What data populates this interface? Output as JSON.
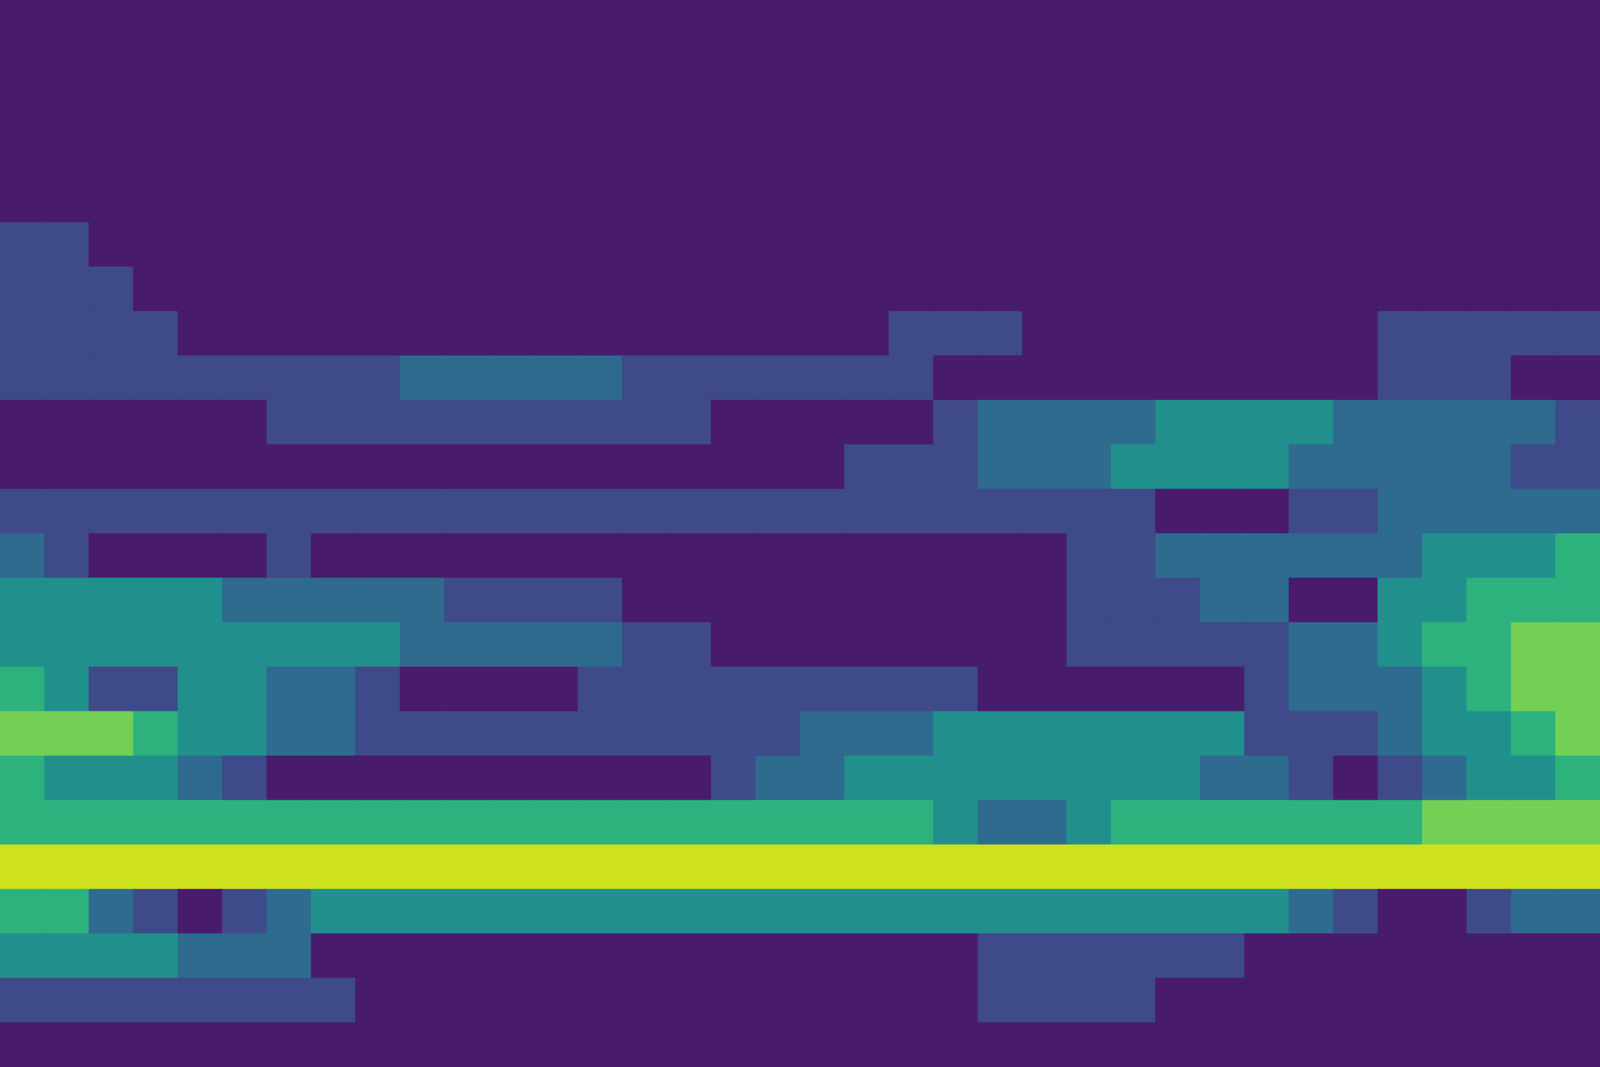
{
  "chart_data": {
    "type": "contour",
    "tick_labels": false,
    "levels": [
      0,
      1,
      2,
      3,
      4,
      5,
      6
    ],
    "colors": [
      "#481b6d",
      "#3e4a89",
      "#2e6b8e",
      "#21908d",
      "#2db27d",
      "#74d055",
      "#cde11d"
    ],
    "z": [
      [
        0,
        0,
        0,
        0,
        0,
        0,
        0,
        0,
        0,
        0,
        0,
        0,
        0,
        0,
        0,
        0,
        0,
        0,
        0,
        0,
        0,
        0,
        0,
        0,
        0,
        0,
        0,
        0,
        0,
        0,
        0,
        0,
        0,
        0,
        0,
        0
      ],
      [
        0,
        0,
        0,
        0,
        0,
        0,
        0,
        0,
        0,
        0,
        0,
        0,
        0,
        0,
        0,
        0,
        0,
        0,
        0,
        0,
        0,
        0,
        0,
        0,
        0,
        0,
        0,
        0,
        0,
        0,
        0,
        0,
        0,
        0,
        0,
        0
      ],
      [
        0,
        0,
        0,
        0,
        0,
        0,
        0,
        0,
        0,
        0,
        0,
        0,
        0,
        0,
        0,
        0,
        0,
        0,
        0,
        0,
        0,
        0,
        0,
        0,
        0,
        0,
        0,
        0,
        0,
        0,
        0,
        0,
        0,
        0,
        0,
        0
      ],
      [
        0,
        0,
        0,
        0,
        0,
        0,
        0,
        0,
        0,
        0,
        0,
        0,
        0,
        0,
        0,
        0,
        0,
        0,
        0,
        0,
        0,
        0,
        0,
        0,
        0,
        0,
        0,
        0,
        0,
        0,
        0,
        0,
        0,
        0,
        0,
        0
      ],
      [
        0,
        0,
        0,
        0,
        0,
        0,
        0,
        0,
        0,
        0,
        0,
        0,
        0,
        0,
        0,
        0,
        0,
        0,
        0,
        0,
        0,
        0,
        0,
        0,
        0,
        0,
        0,
        0,
        0,
        0,
        0,
        0,
        0,
        0,
        0,
        0
      ],
      [
        1,
        1,
        0,
        0,
        0,
        0,
        0,
        0,
        0,
        0,
        0,
        0,
        0,
        0,
        0,
        0,
        0,
        0,
        0,
        0,
        0,
        0,
        0,
        0,
        0,
        0,
        0,
        0,
        0,
        0,
        0,
        0,
        0,
        0,
        0,
        0
      ],
      [
        1,
        1,
        1,
        0,
        0,
        0,
        0,
        0,
        0,
        0,
        0,
        0,
        0,
        0,
        0,
        0,
        0,
        0,
        0,
        0,
        0,
        0,
        0,
        0,
        0,
        0,
        0,
        0,
        0,
        0,
        0,
        0,
        0,
        0,
        0,
        0
      ],
      [
        1,
        1,
        1,
        1,
        0,
        0,
        0,
        0,
        0,
        0,
        0,
        0,
        0,
        0,
        0,
        0,
        0,
        0,
        0,
        0,
        1,
        1,
        1,
        0,
        0,
        0,
        0,
        0,
        0,
        0,
        0,
        1,
        1,
        1,
        1,
        1
      ],
      [
        1,
        1,
        1,
        1,
        1,
        1,
        1,
        1,
        1,
        2,
        2,
        2,
        2,
        2,
        1,
        1,
        1,
        1,
        1,
        1,
        1,
        0,
        0,
        0,
        0,
        0,
        0,
        0,
        0,
        0,
        0,
        1,
        1,
        1,
        0,
        0
      ],
      [
        0,
        0,
        0,
        0,
        0,
        0,
        1,
        1,
        1,
        1,
        1,
        1,
        1,
        1,
        1,
        1,
        0,
        0,
        0,
        0,
        0,
        1,
        2,
        2,
        2,
        2,
        3,
        3,
        3,
        3,
        2,
        2,
        2,
        2,
        2,
        1
      ],
      [
        0,
        0,
        0,
        0,
        0,
        0,
        0,
        0,
        0,
        0,
        0,
        0,
        0,
        0,
        0,
        0,
        0,
        0,
        0,
        1,
        1,
        1,
        2,
        2,
        2,
        3,
        3,
        3,
        3,
        2,
        2,
        2,
        2,
        2,
        1,
        1
      ],
      [
        1,
        1,
        1,
        1,
        1,
        1,
        1,
        1,
        1,
        1,
        1,
        1,
        1,
        1,
        1,
        1,
        1,
        1,
        1,
        1,
        1,
        1,
        1,
        1,
        1,
        1,
        0,
        0,
        0,
        1,
        1,
        2,
        2,
        2,
        2,
        2
      ],
      [
        2,
        1,
        0,
        0,
        0,
        0,
        1,
        0,
        0,
        0,
        0,
        0,
        0,
        0,
        0,
        0,
        0,
        0,
        0,
        0,
        0,
        0,
        0,
        0,
        1,
        1,
        2,
        2,
        2,
        2,
        2,
        2,
        3,
        3,
        3,
        4
      ],
      [
        3,
        3,
        3,
        3,
        3,
        2,
        2,
        2,
        2,
        2,
        1,
        1,
        1,
        1,
        0,
        0,
        0,
        0,
        0,
        0,
        0,
        0,
        0,
        0,
        1,
        1,
        1,
        2,
        2,
        0,
        0,
        3,
        3,
        4,
        4,
        4
      ],
      [
        3,
        3,
        3,
        3,
        3,
        3,
        3,
        3,
        3,
        2,
        2,
        2,
        2,
        2,
        1,
        1,
        0,
        0,
        0,
        0,
        0,
        0,
        0,
        0,
        1,
        1,
        1,
        1,
        1,
        2,
        2,
        3,
        4,
        4,
        5,
        5
      ],
      [
        4,
        3,
        1,
        1,
        3,
        3,
        2,
        2,
        1,
        0,
        0,
        0,
        0,
        1,
        1,
        1,
        1,
        1,
        1,
        1,
        1,
        1,
        0,
        0,
        0,
        0,
        0,
        0,
        1,
        2,
        2,
        2,
        3,
        4,
        5,
        5
      ],
      [
        5,
        5,
        5,
        4,
        3,
        3,
        2,
        2,
        1,
        1,
        1,
        1,
        1,
        1,
        1,
        1,
        1,
        1,
        2,
        2,
        2,
        3,
        3,
        3,
        3,
        3,
        3,
        3,
        1,
        1,
        1,
        2,
        3,
        3,
        4,
        5
      ],
      [
        4,
        3,
        3,
        3,
        2,
        1,
        0,
        0,
        0,
        0,
        0,
        0,
        0,
        0,
        0,
        0,
        1,
        2,
        2,
        3,
        3,
        3,
        3,
        3,
        3,
        3,
        3,
        2,
        2,
        1,
        0,
        1,
        2,
        3,
        3,
        4
      ],
      [
        4,
        4,
        4,
        4,
        4,
        4,
        4,
        4,
        4,
        4,
        4,
        4,
        4,
        4,
        4,
        4,
        4,
        4,
        4,
        4,
        4,
        3,
        2,
        2,
        3,
        4,
        4,
        4,
        4,
        4,
        4,
        4,
        5,
        5,
        5,
        5
      ],
      [
        6,
        6,
        6,
        6,
        6,
        6,
        6,
        6,
        6,
        6,
        6,
        6,
        6,
        6,
        6,
        6,
        6,
        6,
        6,
        6,
        6,
        6,
        6,
        6,
        6,
        6,
        6,
        6,
        6,
        6,
        6,
        6,
        6,
        6,
        6,
        6
      ],
      [
        4,
        4,
        2,
        1,
        0,
        1,
        2,
        3,
        3,
        3,
        3,
        3,
        3,
        3,
        3,
        3,
        3,
        3,
        3,
        3,
        3,
        3,
        3,
        3,
        3,
        3,
        3,
        3,
        3,
        2,
        1,
        0,
        0,
        1,
        2,
        2
      ],
      [
        3,
        3,
        3,
        3,
        2,
        2,
        2,
        0,
        0,
        0,
        0,
        0,
        0,
        0,
        0,
        0,
        0,
        0,
        0,
        0,
        0,
        0,
        1,
        1,
        1,
        1,
        1,
        1,
        0,
        0,
        0,
        0,
        0,
        0,
        0,
        0
      ],
      [
        1,
        1,
        1,
        1,
        1,
        1,
        1,
        1,
        0,
        0,
        0,
        0,
        0,
        0,
        0,
        0,
        0,
        0,
        0,
        0,
        0,
        0,
        1,
        1,
        1,
        1,
        0,
        0,
        0,
        0,
        0,
        0,
        0,
        0,
        0,
        0
      ],
      [
        0,
        0,
        0,
        0,
        0,
        0,
        0,
        0,
        0,
        0,
        0,
        0,
        0,
        0,
        0,
        0,
        0,
        0,
        0,
        0,
        0,
        0,
        0,
        0,
        0,
        0,
        0,
        0,
        0,
        0,
        0,
        0,
        0,
        0,
        0,
        0
      ]
    ]
  }
}
